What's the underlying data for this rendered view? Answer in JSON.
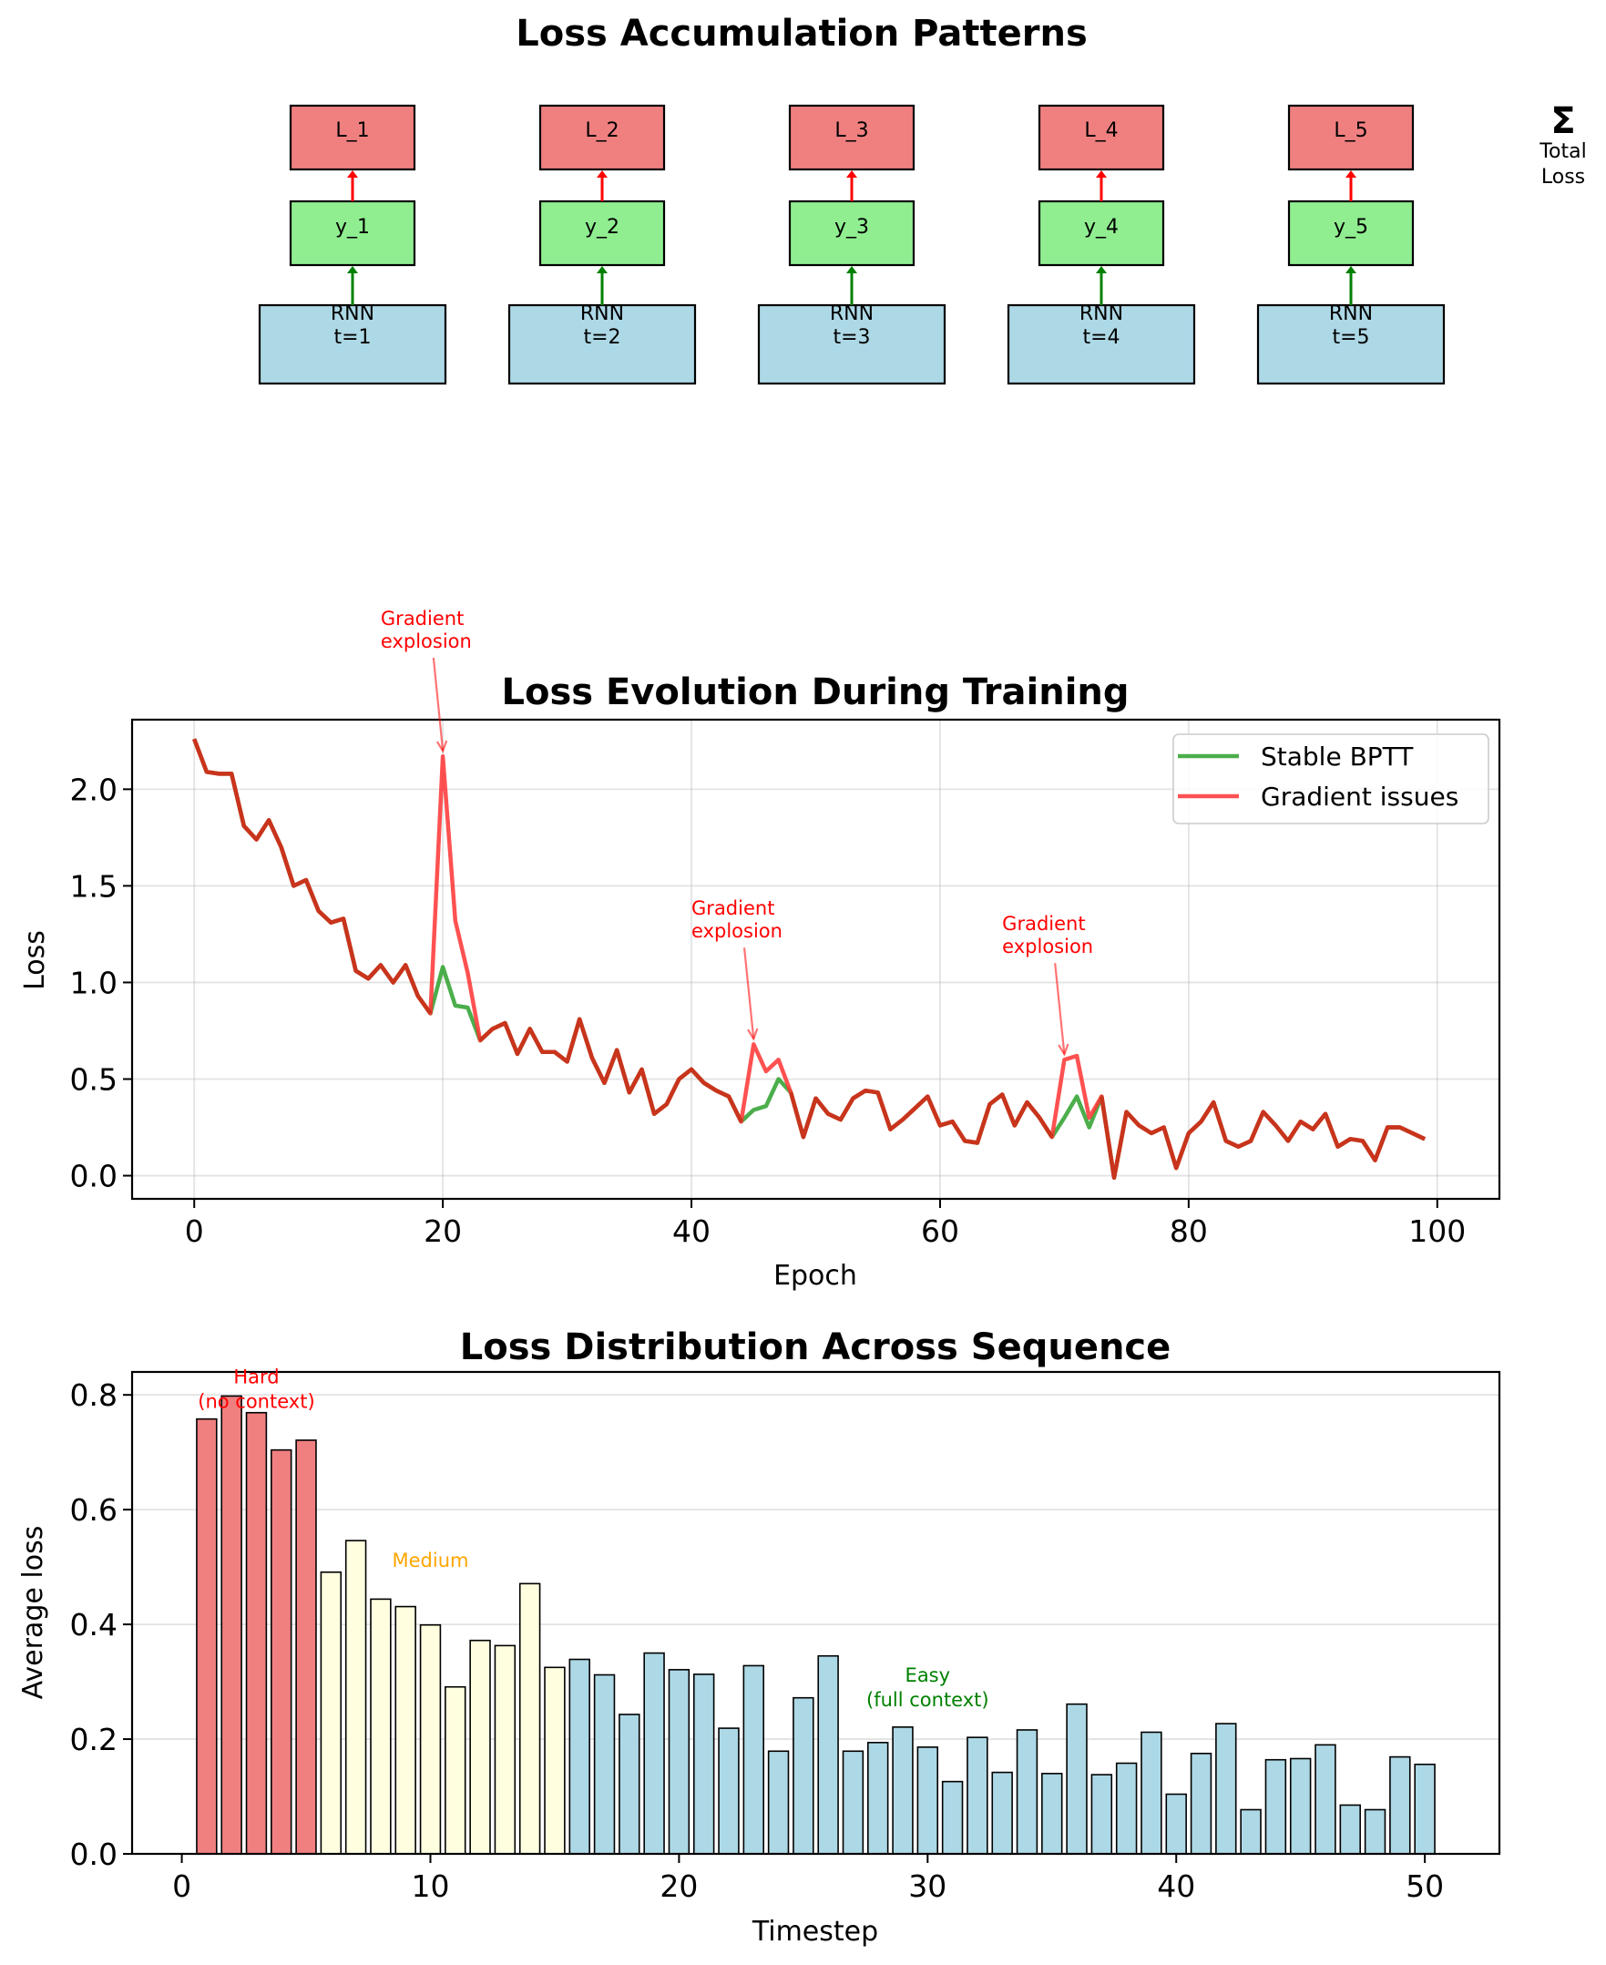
{
  "chart_data": [
    {
      "type": "diagram",
      "title": "Loss Accumulation Patterns",
      "nodes": [
        {
          "rnn": "RNN\nt=1",
          "output": "y_1",
          "loss": "L_1"
        },
        {
          "rnn": "RNN\nt=2",
          "output": "y_2",
          "loss": "L_2"
        },
        {
          "rnn": "RNN\nt=3",
          "output": "y_3",
          "loss": "L_3"
        },
        {
          "rnn": "RNN\nt=4",
          "output": "y_4",
          "loss": "L_4"
        },
        {
          "rnn": "RNN\nt=5",
          "output": "y_5",
          "loss": "L_5"
        }
      ],
      "sum_symbol": "Σ",
      "sum_label": "Total\nLoss",
      "colors": {
        "rnn": "#add8e6",
        "output": "#90ee90",
        "loss": "#f08080",
        "arrow_output": "#008000",
        "arrow_loss": "#ff0000"
      }
    },
    {
      "type": "line",
      "title": "Loss Evolution During Training",
      "xlabel": "Epoch",
      "ylabel": "Loss",
      "xlim": [
        -5,
        105
      ],
      "ylim": [
        -0.12,
        2.36
      ],
      "xticks": [
        0,
        20,
        40,
        60,
        80,
        100
      ],
      "yticks": [
        0.0,
        0.5,
        1.0,
        1.5,
        2.0
      ],
      "ytick_labels": [
        "0.0",
        "0.5",
        "1.0",
        "1.5",
        "2.0"
      ],
      "grid": true,
      "legend_position": "top-right",
      "x": [
        0,
        1,
        2,
        3,
        4,
        5,
        6,
        7,
        8,
        9,
        10,
        11,
        12,
        13,
        14,
        15,
        16,
        17,
        18,
        19,
        20,
        21,
        22,
        23,
        24,
        25,
        26,
        27,
        28,
        29,
        30,
        31,
        32,
        33,
        34,
        35,
        36,
        37,
        38,
        39,
        40,
        41,
        42,
        43,
        44,
        45,
        46,
        47,
        48,
        49,
        50,
        51,
        52,
        53,
        54,
        55,
        56,
        57,
        58,
        59,
        60,
        61,
        62,
        63,
        64,
        65,
        66,
        67,
        68,
        69,
        70,
        71,
        72,
        73,
        74,
        75,
        76,
        77,
        78,
        79,
        80,
        81,
        82,
        83,
        84,
        85,
        86,
        87,
        88,
        89,
        90,
        91,
        92,
        93,
        94,
        95,
        96,
        97,
        98,
        99
      ],
      "series": [
        {
          "name": "Stable BPTT",
          "color": "#2ca02c",
          "values": [
            2.26,
            2.09,
            2.08,
            2.08,
            1.81,
            1.74,
            1.84,
            1.7,
            1.5,
            1.53,
            1.37,
            1.31,
            1.33,
            1.06,
            1.02,
            1.09,
            1.0,
            1.09,
            0.93,
            0.84,
            1.08,
            0.88,
            0.87,
            0.7,
            0.76,
            0.79,
            0.63,
            0.76,
            0.64,
            0.64,
            0.59,
            0.81,
            0.61,
            0.48,
            0.65,
            0.43,
            0.55,
            0.32,
            0.37,
            0.5,
            0.55,
            0.48,
            0.44,
            0.41,
            0.28,
            0.34,
            0.36,
            0.5,
            0.43,
            0.2,
            0.4,
            0.32,
            0.29,
            0.4,
            0.44,
            0.43,
            0.24,
            0.29,
            0.35,
            0.41,
            0.26,
            0.28,
            0.18,
            0.17,
            0.37,
            0.42,
            0.26,
            0.38,
            0.3,
            0.2,
            0.3,
            0.41,
            0.25,
            0.41,
            -0.01,
            0.33,
            0.26,
            0.22,
            0.25,
            0.04,
            0.22,
            0.28,
            0.38,
            0.18,
            0.15,
            0.18,
            0.33,
            0.26,
            0.18,
            0.28,
            0.24,
            0.32,
            0.15,
            0.19,
            0.18,
            0.08,
            0.25,
            0.25,
            0.22,
            0.19
          ]
        },
        {
          "name": "Gradient issues",
          "color": "#ff3333",
          "values": [
            2.26,
            2.09,
            2.08,
            2.08,
            1.81,
            1.74,
            1.84,
            1.7,
            1.5,
            1.53,
            1.37,
            1.31,
            1.33,
            1.06,
            1.02,
            1.09,
            1.0,
            1.09,
            0.93,
            0.84,
            2.17,
            1.32,
            1.05,
            0.7,
            0.76,
            0.79,
            0.63,
            0.76,
            0.64,
            0.64,
            0.59,
            0.81,
            0.61,
            0.48,
            0.65,
            0.43,
            0.55,
            0.32,
            0.37,
            0.5,
            0.55,
            0.48,
            0.44,
            0.41,
            0.28,
            0.68,
            0.54,
            0.6,
            0.43,
            0.2,
            0.4,
            0.32,
            0.29,
            0.4,
            0.44,
            0.43,
            0.24,
            0.29,
            0.35,
            0.41,
            0.26,
            0.28,
            0.18,
            0.17,
            0.37,
            0.42,
            0.26,
            0.38,
            0.3,
            0.2,
            0.6,
            0.62,
            0.3,
            0.41,
            -0.01,
            0.33,
            0.26,
            0.22,
            0.25,
            0.04,
            0.22,
            0.28,
            0.38,
            0.18,
            0.15,
            0.18,
            0.33,
            0.26,
            0.18,
            0.28,
            0.24,
            0.32,
            0.15,
            0.19,
            0.18,
            0.08,
            0.25,
            0.25,
            0.22,
            0.19
          ]
        }
      ],
      "overlap_color": "#c8341c",
      "annotations": [
        {
          "text": "Gradient\nexplosion",
          "point": [
            20,
            2.17
          ],
          "text_at": [
            15,
            2.85
          ]
        },
        {
          "text": "Gradient\nexplosion",
          "point": [
            45,
            0.68
          ],
          "text_at": [
            40,
            1.35
          ]
        },
        {
          "text": "Gradient\nexplosion",
          "point": [
            70,
            0.6
          ],
          "text_at": [
            65,
            1.27
          ]
        }
      ]
    },
    {
      "type": "bar",
      "title": "Loss Distribution Across Sequence",
      "xlabel": "Timestep",
      "ylabel": "Average loss",
      "xlim": [
        -2,
        53
      ],
      "ylim": [
        0,
        0.84
      ],
      "xticks": [
        0,
        10,
        20,
        30,
        40,
        50
      ],
      "yticks": [
        0.0,
        0.2,
        0.4,
        0.6,
        0.8
      ],
      "ytick_labels": [
        "0.0",
        "0.2",
        "0.4",
        "0.6",
        "0.8"
      ],
      "grid": true,
      "categories": [
        1,
        2,
        3,
        4,
        5,
        6,
        7,
        8,
        9,
        10,
        11,
        12,
        13,
        14,
        15,
        16,
        17,
        18,
        19,
        20,
        21,
        22,
        23,
        24,
        25,
        26,
        27,
        28,
        29,
        30,
        31,
        32,
        33,
        34,
        35,
        36,
        37,
        38,
        39,
        40,
        41,
        42,
        43,
        44,
        45,
        46,
        47,
        48,
        49,
        50
      ],
      "values": [
        0.758,
        0.798,
        0.769,
        0.704,
        0.721,
        0.491,
        0.546,
        0.444,
        0.431,
        0.399,
        0.291,
        0.372,
        0.363,
        0.471,
        0.325,
        0.339,
        0.312,
        0.243,
        0.35,
        0.321,
        0.313,
        0.219,
        0.328,
        0.179,
        0.272,
        0.345,
        0.179,
        0.194,
        0.221,
        0.186,
        0.126,
        0.203,
        0.142,
        0.216,
        0.14,
        0.261,
        0.138,
        0.158,
        0.212,
        0.104,
        0.175,
        0.227,
        0.077,
        0.164,
        0.166,
        0.19,
        0.085,
        0.077,
        0.169,
        0.156
      ],
      "groups": [
        {
          "name": "Hard",
          "range": [
            1,
            5
          ],
          "color": "#f08080"
        },
        {
          "name": "Medium",
          "range": [
            6,
            15
          ],
          "color": "#ffffe0"
        },
        {
          "name": "Easy",
          "range": [
            16,
            50
          ],
          "color": "#add8e6"
        }
      ],
      "annotations": [
        {
          "text": "Hard\n(no context)",
          "at": [
            3,
            0.82
          ],
          "color": "#ff0000"
        },
        {
          "text": "Medium",
          "at": [
            10,
            0.5
          ],
          "color": "#ffa500"
        },
        {
          "text": "Easy\n(full context)",
          "at": [
            30,
            0.3
          ],
          "color": "#008000"
        }
      ]
    }
  ]
}
